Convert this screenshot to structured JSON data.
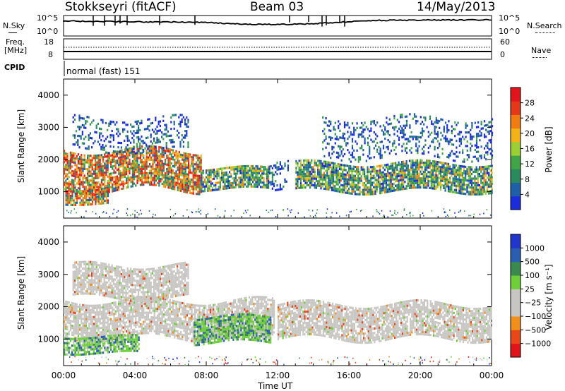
{
  "header": {
    "station": "Stokkseyri (fitACF)",
    "beam": "Beam 03",
    "date": "14/May/2013"
  },
  "top_panel": {
    "left_label": "N.Sky",
    "left_ticks": [
      "10^5",
      "10^0"
    ],
    "right_label": "N.Search",
    "right_ticks": [
      "10^5",
      "10^0"
    ]
  },
  "freq_panel": {
    "left_label_1": "Freq.",
    "left_label_2": "[MHz]",
    "left_ticks": [
      "18",
      "8"
    ],
    "right_label": "Nave",
    "right_ticks": [
      "60",
      "0"
    ],
    "cpid_label": "CPID",
    "cpid_value": "normal (fast) 151"
  },
  "chart_data": [
    {
      "type": "heatmap",
      "ylabel": "Slant Range [km]",
      "y_ticks": [
        "4000",
        "3000",
        "2000",
        "1000"
      ],
      "ylim": [
        180,
        4500
      ],
      "x_ticks": [
        "00:00",
        "04:00",
        "08:00",
        "12:00",
        "16:00",
        "20:00",
        "00:00"
      ],
      "colorbar": {
        "label": "Power [dB]",
        "ticks": [
          "28",
          "24",
          "20",
          "16",
          "12",
          "8",
          "4"
        ],
        "range": [
          0,
          30
        ],
        "colors": [
          "#1c2bdc",
          "#1f5fa8",
          "#2a8a5e",
          "#3fa547",
          "#9ad034",
          "#f3b21a",
          "#f07c12",
          "#e4381a",
          "#e0141a"
        ]
      },
      "bands": [
        {
          "hours": [
            0,
            7.7
          ],
          "range_km": [
            1050,
            2300
          ],
          "level": "high"
        },
        {
          "hours": [
            0.1,
            2.5
          ],
          "range_km": [
            620,
            1100
          ],
          "level": "high"
        },
        {
          "hours": [
            7.7,
            11.5
          ],
          "range_km": [
            1100,
            1750
          ],
          "level": "medium"
        },
        {
          "hours": [
            11.5,
            12.6
          ],
          "range_km": [
            1000,
            1900
          ],
          "level": "low"
        },
        {
          "hours": [
            13.0,
            24.0
          ],
          "range_km": [
            1000,
            1900
          ],
          "level": "medium"
        },
        {
          "hours": [
            0.5,
            7.0
          ],
          "range_km": [
            2300,
            3300
          ],
          "level": "low"
        },
        {
          "hours": [
            14.5,
            24.0
          ],
          "range_km": [
            2100,
            3300
          ],
          "level": "low"
        }
      ]
    },
    {
      "type": "heatmap",
      "ylabel": "Slant Range [km]",
      "y_ticks": [
        "4000",
        "3000",
        "2000",
        "1000"
      ],
      "ylim": [
        180,
        4500
      ],
      "x_ticks": [
        "00:00",
        "04:00",
        "08:00",
        "12:00",
        "16:00",
        "20:00",
        "00:00"
      ],
      "xlabel": "Time UT",
      "colorbar": {
        "label": "Velocity [m s⁻¹]",
        "ticks": [
          "1000",
          "500",
          "100",
          "25",
          "−25",
          "−100",
          "−500",
          "−1000"
        ],
        "colors": [
          "#e0141a",
          "#e8471a",
          "#f08f19",
          "#c8c6c2",
          "#c8c6c2",
          "#6ecf3a",
          "#3a8a50",
          "#2a5fb0",
          "#2235cc"
        ]
      },
      "bands": [
        {
          "hours": [
            0,
            11.8
          ],
          "range_km": [
            1050,
            2200
          ],
          "level": "grey"
        },
        {
          "hours": [
            0,
            4.2
          ],
          "range_km": [
            600,
            1100
          ],
          "level": "green"
        },
        {
          "hours": [
            7.3,
            11.6
          ],
          "range_km": [
            900,
            1700
          ],
          "level": "green"
        },
        {
          "hours": [
            12.0,
            24.0
          ],
          "range_km": [
            1000,
            2100
          ],
          "level": "grey"
        },
        {
          "hours": [
            0.5,
            7.0
          ],
          "range_km": [
            2300,
            3300
          ],
          "level": "grey"
        }
      ]
    }
  ]
}
